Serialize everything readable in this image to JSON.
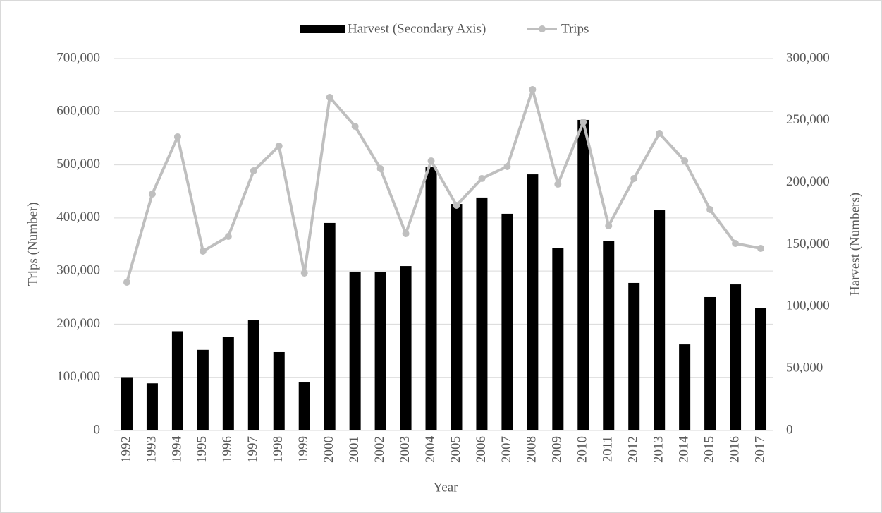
{
  "chart_data": {
    "type": "bar-line",
    "categories": [
      "1992",
      "1993",
      "1994",
      "1995",
      "1996",
      "1997",
      "1998",
      "1999",
      "2000",
      "2001",
      "2002",
      "2003",
      "2004",
      "2005",
      "2006",
      "2007",
      "2008",
      "2009",
      "2010",
      "2011",
      "2012",
      "2013",
      "2014",
      "2015",
      "2016",
      "2017"
    ],
    "series": [
      {
        "name": "Harvest (Secondary Axis)",
        "type": "bar",
        "axis": "y2",
        "color": "#000000",
        "values": [
          43000,
          38000,
          80000,
          65000,
          75700,
          88800,
          63200,
          38700,
          167400,
          128100,
          128000,
          132600,
          212900,
          182700,
          187900,
          174800,
          206600,
          146900,
          250500,
          152600,
          119000,
          177600,
          69400,
          107600,
          117800,
          98500
        ]
      },
      {
        "name": "Trips",
        "type": "line",
        "color": "#bfbfbf",
        "values": [
          279000,
          445000,
          552600,
          337400,
          365300,
          488800,
          535300,
          296200,
          627000,
          572500,
          492800,
          370600,
          507400,
          423700,
          474200,
          496800,
          641600,
          463600,
          580500,
          385200,
          474200,
          559200,
          507400,
          415800,
          352000,
          342700
        ]
      }
    ],
    "xlabel": "Year",
    "ylabel": "Trips (Number)",
    "y2label": "Harvest (Numbers)",
    "ylim": [
      0,
      700000
    ],
    "yticks": [
      0,
      {
        "value": 100000,
        "label": "100,000"
      },
      {
        "value": 200000,
        "label": "200,000"
      },
      {
        "value": 300000,
        "label": "300,000"
      },
      {
        "value": 400000,
        "label": "400,000"
      },
      {
        "value": 500000,
        "label": "500,000"
      },
      {
        "value": 600000,
        "label": "600,000"
      },
      {
        "value": 700000,
        "label": "700,000"
      }
    ],
    "y2lim": [
      0,
      300000
    ],
    "y2ticks": [
      0,
      {
        "value": 50000,
        "label": "50,000"
      },
      {
        "value": 100000,
        "label": "100,000"
      },
      {
        "value": 150000,
        "label": "150,000"
      },
      {
        "value": 200000,
        "label": "200,000"
      },
      {
        "value": 250000,
        "label": "250,000"
      },
      {
        "value": 300000,
        "label": "300,000"
      }
    ],
    "grid": true,
    "legend": "top"
  }
}
